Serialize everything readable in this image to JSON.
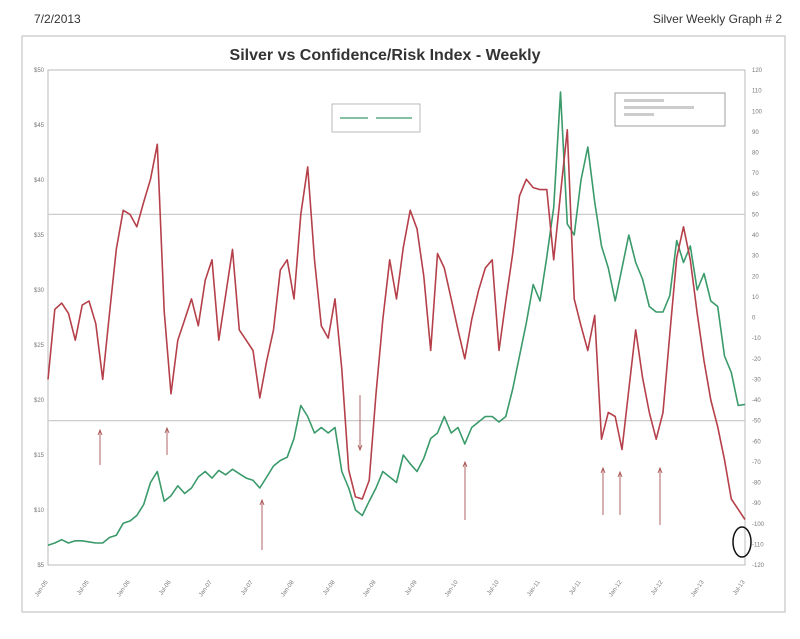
{
  "header": {
    "date": "7/2/2013",
    "label": "Silver Weekly Graph # 2"
  },
  "chart_data": {
    "type": "line",
    "title": "Silver vs Confidence/Risk Index - Weekly",
    "x_start": "2005-01",
    "x_step": "month",
    "x_tick_labels": [
      "Jan-05",
      "Jul-05",
      "Jan-06",
      "Jul-06",
      "Jan-07",
      "Jul-07",
      "Jan-08",
      "Jul-08",
      "Jan-09",
      "Jul-09",
      "Jan-10",
      "Jul-10",
      "Jan-11",
      "Jul-11",
      "Jan-12",
      "Jul-12",
      "Jan-13",
      "Jul-13"
    ],
    "y_left": {
      "ticks": [
        "$50",
        "$45",
        "$40",
        "$35",
        "$30",
        "$25",
        "$20",
        "$15",
        "$10",
        "$5"
      ],
      "range": [
        5,
        50
      ]
    },
    "y_right": {
      "ticks": [
        "120",
        "110",
        "100",
        "90",
        "80",
        "70",
        "60",
        "50",
        "40",
        "30",
        "20",
        "10",
        "0",
        "-10",
        "-20",
        "-30",
        "-40",
        "-50",
        "-60",
        "-70",
        "-80",
        "-90",
        "-100",
        "-110",
        "-120"
      ],
      "range": [
        -120,
        120
      ]
    },
    "reference_lines_right_axis": [
      50,
      -50
    ],
    "grid": false,
    "legend": "top-center",
    "series": [
      {
        "axis": "left",
        "color": "#3a9a6a",
        "values": [
          6.8,
          7.0,
          7.3,
          7.0,
          7.2,
          7.2,
          7.1,
          7.0,
          7.0,
          7.5,
          7.7,
          8.8,
          9.0,
          9.5,
          10.5,
          12.5,
          13.5,
          10.8,
          11.3,
          12.2,
          11.5,
          12.0,
          13.0,
          13.5,
          12.9,
          13.6,
          13.2,
          13.7,
          13.3,
          12.9,
          12.7,
          12.0,
          13.0,
          14.0,
          14.5,
          14.8,
          16.5,
          19.5,
          18.5,
          17.0,
          17.5,
          17.0,
          17.5,
          13.5,
          12.0,
          10.0,
          9.5,
          10.8,
          12.0,
          13.5,
          13.0,
          12.5,
          15.0,
          14.2,
          13.5,
          14.7,
          16.5,
          17.0,
          18.5,
          17.0,
          17.5,
          16.0,
          17.5,
          18.0,
          18.5,
          18.5,
          18.0,
          18.5,
          21.0,
          24.0,
          27.0,
          30.5,
          29.0,
          33.0,
          37.5,
          48.0,
          36.0,
          35.0,
          40.0,
          43.0,
          38.0,
          34.0,
          32.0,
          29.0,
          32.0,
          35.0,
          32.5,
          31.0,
          28.5,
          28.0,
          28.0,
          29.5,
          34.5,
          32.5,
          34.0,
          30.0,
          31.5,
          29.0,
          28.5,
          24.0,
          22.5,
          19.5,
          19.6
        ]
      },
      {
        "axis": "right",
        "color": "#b5404a",
        "values": [
          -30,
          4,
          7,
          2,
          -11,
          6,
          8,
          -3,
          -30,
          2,
          33,
          52,
          50,
          44,
          56,
          67,
          84,
          3,
          -37,
          -11,
          -1,
          9,
          -4,
          18,
          28,
          -11,
          11,
          33,
          -6,
          -11,
          -16,
          -39,
          -21,
          -6,
          23,
          28,
          9,
          50,
          73,
          28,
          -4,
          -10,
          9,
          -25,
          -74,
          -87,
          -88,
          -79,
          -37,
          -1,
          28,
          9,
          34,
          52,
          43,
          20,
          -16,
          31,
          24,
          9,
          -6,
          -20,
          -1,
          13,
          24,
          28,
          -16,
          8,
          31,
          59,
          67,
          63,
          62,
          62,
          28,
          60,
          91,
          9,
          -4,
          -16,
          1,
          -59,
          -46,
          -48,
          -64,
          -35,
          -6,
          -29,
          -46,
          -59,
          -46,
          -8,
          29,
          44,
          28,
          2,
          -21,
          -40,
          -53,
          -69,
          -88,
          -93,
          -98
        ]
      }
    ]
  }
}
